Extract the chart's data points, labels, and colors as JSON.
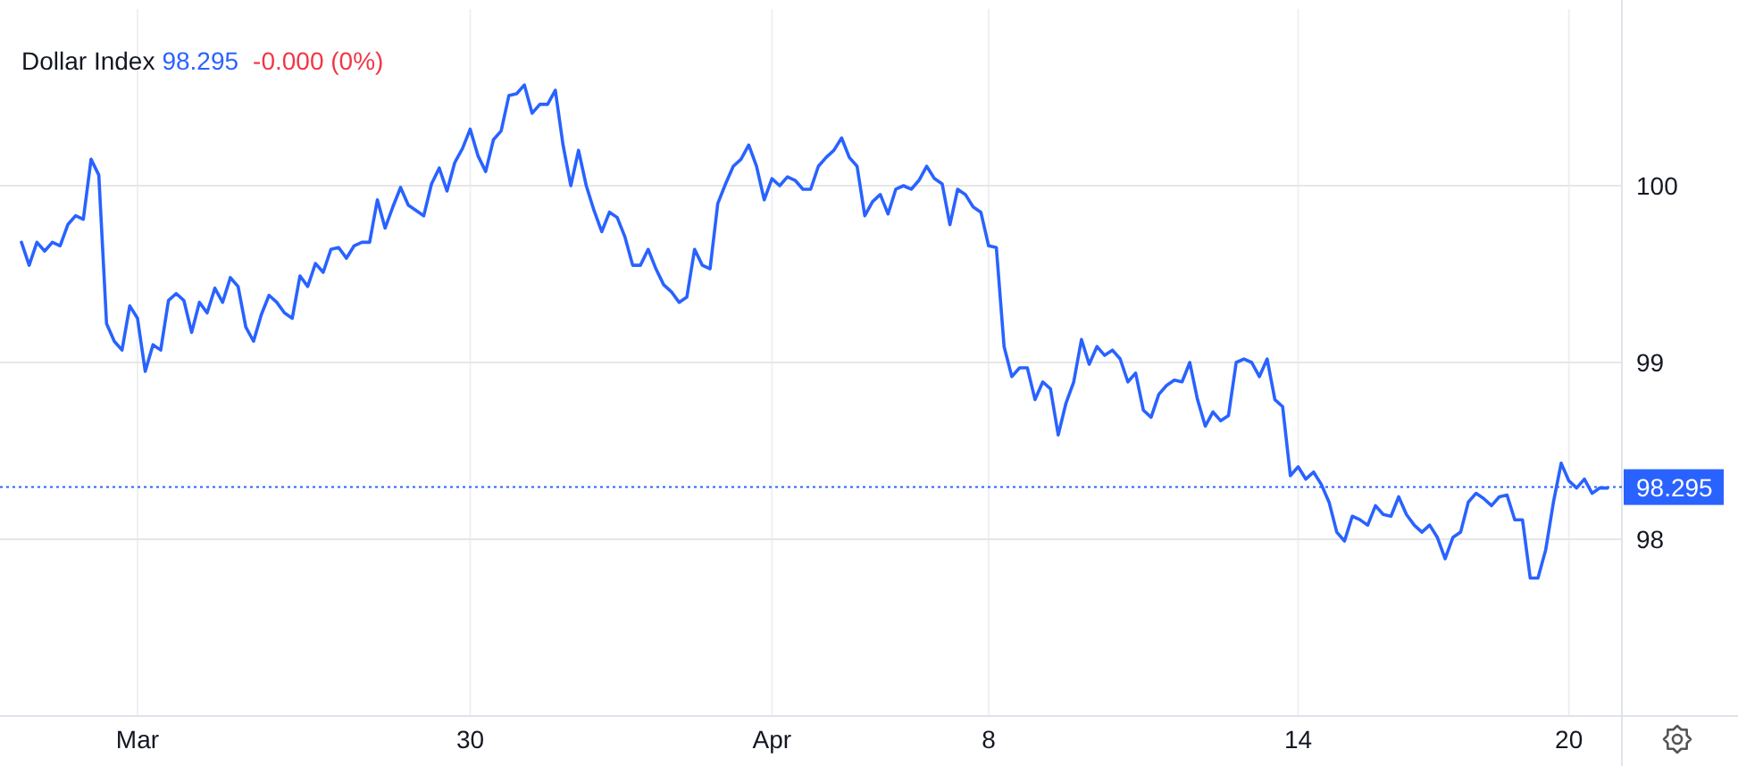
{
  "chart_data": {
    "type": "line",
    "title": "Dollar Index",
    "annotations": [
      "98.295",
      "-0.000 (0%)"
    ],
    "categories": [
      null,
      null,
      null,
      null,
      null,
      null,
      null,
      null,
      null,
      null,
      null,
      null,
      null,
      null,
      null,
      "Mar",
      null,
      null,
      null,
      null,
      null,
      null,
      null,
      null,
      null,
      null,
      null,
      null,
      null,
      null,
      null,
      null,
      null,
      null,
      null,
      null,
      null,
      null,
      null,
      null,
      null,
      null,
      null,
      null,
      null,
      null,
      null,
      null,
      null,
      null,
      null,
      null,
      null,
      null,
      null,
      null,
      null,
      null,
      "30",
      null,
      null,
      null,
      null,
      null,
      null,
      null,
      null,
      null,
      null,
      null,
      null,
      null,
      null,
      null,
      null,
      null,
      null,
      null,
      null,
      null,
      null,
      null,
      null,
      null,
      null,
      null,
      null,
      null,
      null,
      null,
      null,
      null,
      null,
      null,
      null,
      null,
      null,
      "Apr",
      null,
      null,
      null,
      null,
      null,
      null,
      null,
      null,
      null,
      null,
      null,
      null,
      null,
      null,
      null,
      null,
      null,
      null,
      null,
      null,
      null,
      null,
      null,
      null,
      null,
      null,
      null,
      "8",
      null,
      null,
      null,
      null,
      null,
      null,
      null,
      null,
      null,
      null,
      null,
      null,
      null,
      null,
      null,
      null,
      null,
      null,
      null,
      null,
      null,
      null,
      null,
      null,
      null,
      null,
      null,
      null,
      null,
      null,
      null,
      null,
      null,
      null,
      null,
      null,
      null,
      null,
      null,
      "14",
      null,
      null,
      null,
      null,
      null,
      null,
      null,
      null,
      null,
      null,
      null,
      null,
      null,
      null,
      null,
      null,
      null,
      null,
      null,
      null,
      null,
      null,
      null,
      null,
      null,
      null,
      null,
      null,
      null,
      null,
      null,
      null,
      null,
      null,
      "20",
      null,
      null,
      null,
      null,
      null
    ],
    "series": [
      {
        "color": "#2962ff",
        "values": [
          99.68,
          99.55,
          99.68,
          99.63,
          99.68,
          99.66,
          99.78,
          99.83,
          99.81,
          100.15,
          100.06,
          99.22,
          99.12,
          99.07,
          99.32,
          99.25,
          98.95,
          99.1,
          99.07,
          99.35,
          99.39,
          99.35,
          99.17,
          99.34,
          99.28,
          99.42,
          99.34,
          99.48,
          99.43,
          99.2,
          99.12,
          99.27,
          99.38,
          99.34,
          99.28,
          99.25,
          99.49,
          99.43,
          99.56,
          99.51,
          99.64,
          99.65,
          99.59,
          99.66,
          99.68,
          99.68,
          99.92,
          99.76,
          99.88,
          99.99,
          99.89,
          99.86,
          99.83,
          100.01,
          100.1,
          99.97,
          100.13,
          100.21,
          100.32,
          100.17,
          100.08,
          100.26,
          100.31,
          100.51,
          100.52,
          100.57,
          100.41,
          100.46,
          100.46,
          100.54,
          100.23,
          100.0,
          100.2,
          100.0,
          99.86,
          99.74,
          99.85,
          99.82,
          99.71,
          99.55,
          99.55,
          99.64,
          99.53,
          99.44,
          99.4,
          99.34,
          99.37,
          99.64,
          99.55,
          99.53,
          99.9,
          100.01,
          100.11,
          100.15,
          100.23,
          100.11,
          99.92,
          100.04,
          100.0,
          100.05,
          100.03,
          99.98,
          99.98,
          100.11,
          100.16,
          100.2,
          100.27,
          100.16,
          100.11,
          99.83,
          99.91,
          99.95,
          99.84,
          99.98,
          100.0,
          99.98,
          100.03,
          100.11,
          100.04,
          100.01,
          99.78,
          99.98,
          99.95,
          99.88,
          99.85,
          99.66,
          99.65,
          99.09,
          98.92,
          98.97,
          98.97,
          98.79,
          98.89,
          98.85,
          98.59,
          98.77,
          98.89,
          99.13,
          98.99,
          99.09,
          99.04,
          99.07,
          99.02,
          98.89,
          98.94,
          98.73,
          98.69,
          98.82,
          98.87,
          98.9,
          98.89,
          99.0,
          98.79,
          98.64,
          98.72,
          98.67,
          98.7,
          99.0,
          99.02,
          99.0,
          98.92,
          99.02,
          98.79,
          98.75,
          98.36,
          98.41,
          98.34,
          98.38,
          98.31,
          98.21,
          98.04,
          97.99,
          98.13,
          98.11,
          98.08,
          98.19,
          98.14,
          98.13,
          98.24,
          98.14,
          98.08,
          98.04,
          98.08,
          98.01,
          97.89,
          98.01,
          98.04,
          98.21,
          98.26,
          98.23,
          98.19,
          98.24,
          98.25,
          98.11,
          98.11,
          97.78,
          97.78,
          97.94,
          98.21,
          98.43,
          98.33,
          98.29,
          98.34,
          98.26,
          98.29,
          98.29
        ]
      }
    ],
    "ylim": [
      97,
      101
    ],
    "yticks": [
      98,
      99,
      100
    ],
    "grid": true,
    "line_style": "solid",
    "ref_lines": [
      {
        "axis": "y",
        "value": 98.295,
        "label": "98.295",
        "color": "#2962ff",
        "line_style": "dotted"
      }
    ]
  }
}
